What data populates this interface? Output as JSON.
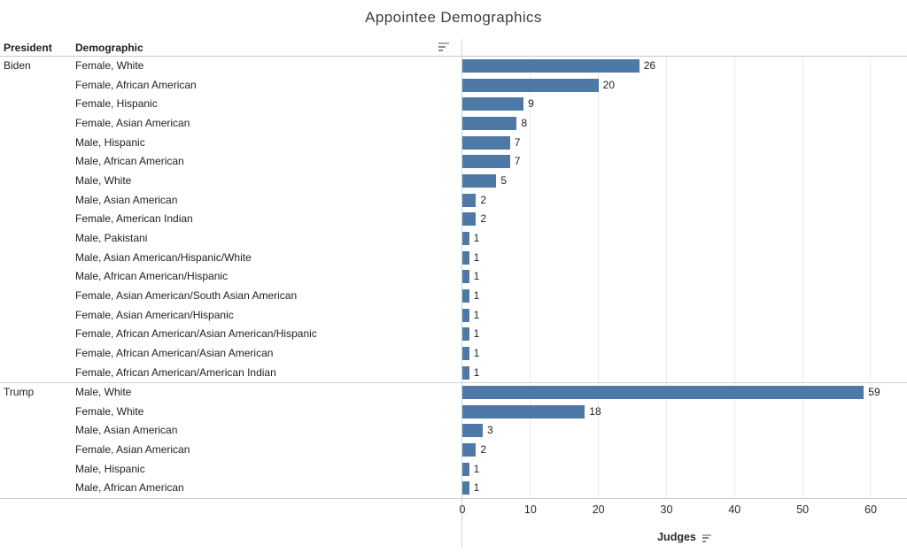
{
  "title": "Appointee Demographics",
  "columns": {
    "president": "President",
    "demographic": "Demographic"
  },
  "icons": {
    "demographic_sort": "sort-descending",
    "judges_sort": "sort-descending"
  },
  "colors": {
    "bar": "#4e79a7",
    "gridline": "#ebebeb",
    "axis_rule": "#c9c9c9",
    "text": "#222222"
  },
  "chart_data": {
    "type": "bar",
    "orientation": "horizontal",
    "title": "Appointee Demographics",
    "xlabel": "Judges",
    "x_ticks": [
      0,
      10,
      20,
      30,
      40,
      50,
      60
    ],
    "xlim": [
      0,
      65.3
    ],
    "grid": "vertical",
    "bar_color": "#4e79a7",
    "groups": [
      {
        "president": "Biden",
        "rows": [
          {
            "demographic": "Female, White",
            "judges": 26
          },
          {
            "demographic": "Female, African American",
            "judges": 20
          },
          {
            "demographic": "Female, Hispanic",
            "judges": 9
          },
          {
            "demographic": "Female, Asian American",
            "judges": 8
          },
          {
            "demographic": "Male, Hispanic",
            "judges": 7
          },
          {
            "demographic": "Male, African American",
            "judges": 7
          },
          {
            "demographic": "Male, White",
            "judges": 5
          },
          {
            "demographic": "Male, Asian American",
            "judges": 2
          },
          {
            "demographic": "Female, American Indian",
            "judges": 2
          },
          {
            "demographic": "Male, Pakistani",
            "judges": 1
          },
          {
            "demographic": "Male, Asian American/Hispanic/White",
            "judges": 1
          },
          {
            "demographic": "Male, African American/Hispanic",
            "judges": 1
          },
          {
            "demographic": "Female, Asian American/South Asian American",
            "judges": 1
          },
          {
            "demographic": "Female, Asian American/Hispanic",
            "judges": 1
          },
          {
            "demographic": "Female, African American/Asian American/Hispanic",
            "judges": 1
          },
          {
            "demographic": "Female, African American/Asian American",
            "judges": 1
          },
          {
            "demographic": "Female, African American/American Indian",
            "judges": 1
          }
        ]
      },
      {
        "president": "Trump",
        "rows": [
          {
            "demographic": "Male, White",
            "judges": 59
          },
          {
            "demographic": "Female, White",
            "judges": 18
          },
          {
            "demographic": "Male, Asian American",
            "judges": 3
          },
          {
            "demographic": "Female, Asian American",
            "judges": 2
          },
          {
            "demographic": "Male, Hispanic",
            "judges": 1
          },
          {
            "demographic": "Male, African American",
            "judges": 1
          }
        ]
      }
    ]
  }
}
